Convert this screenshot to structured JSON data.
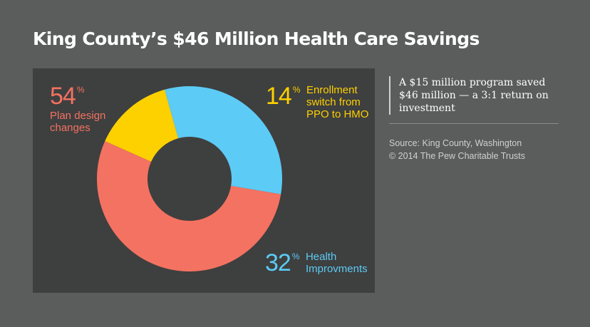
{
  "title": "King County’s $46 Million Health Care Savings",
  "chart_data": {
    "type": "pie",
    "donut": true,
    "slices": [
      {
        "value": 14,
        "percent_label": "14",
        "label": "Enrollment switch from PPO to HMO",
        "color": "#fdd000"
      },
      {
        "value": 32,
        "percent_label": "32",
        "label": "Health Improvments",
        "color": "#5ccbf5"
      },
      {
        "value": 54,
        "percent_label": "54",
        "label": "Plan design changes",
        "color": "#f47261"
      }
    ],
    "percent_symbol": "%"
  },
  "callout": "A $15 million program saved $46 million — a 3:1 return on investment",
  "source_line1": "Source: King County, Washington",
  "source_line2": "© 2014 The Pew Charitable Trusts",
  "colors": {
    "background": "#5b5c5c",
    "panel": "#3e3f3f"
  }
}
